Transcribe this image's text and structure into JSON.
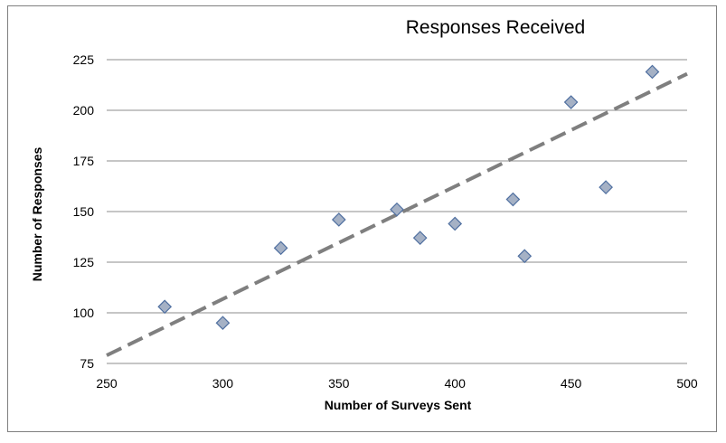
{
  "chart_data": {
    "type": "scatter",
    "title": "Responses Received",
    "xlabel": "Number of Surveys Sent",
    "ylabel": "Number of Responses",
    "xlim": [
      250,
      500
    ],
    "ylim": [
      75,
      225
    ],
    "xticks": [
      "250",
      "300",
      "350",
      "400",
      "450",
      "500"
    ],
    "yticks": [
      "75",
      "100",
      "125",
      "150",
      "175",
      "200",
      "225"
    ],
    "grid": "horizontal",
    "points": [
      {
        "x": 275,
        "y": 103
      },
      {
        "x": 300,
        "y": 95
      },
      {
        "x": 325,
        "y": 132
      },
      {
        "x": 350,
        "y": 146
      },
      {
        "x": 375,
        "y": 151
      },
      {
        "x": 385,
        "y": 137
      },
      {
        "x": 400,
        "y": 144
      },
      {
        "x": 425,
        "y": 156
      },
      {
        "x": 430,
        "y": 128
      },
      {
        "x": 450,
        "y": 204
      },
      {
        "x": 465,
        "y": 162
      },
      {
        "x": 485,
        "y": 219
      }
    ],
    "trendline": {
      "style": "dashed",
      "x": [
        250,
        500
      ],
      "y": [
        79,
        218
      ]
    },
    "colors": {
      "marker_fill": "#a5b1c5",
      "marker_stroke": "#4f6fa0",
      "trendline": "#7f7f7f",
      "gridline": "#8c8c8c"
    }
  }
}
